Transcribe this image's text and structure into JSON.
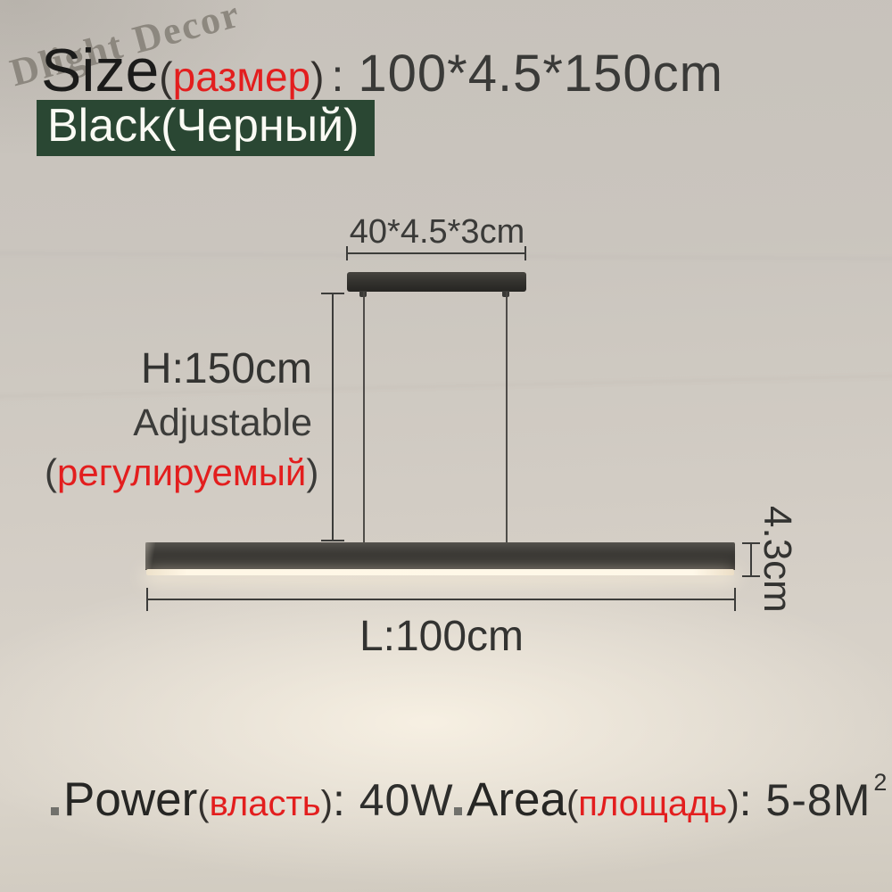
{
  "product": {
    "watermark": "Dlight Decor",
    "size_label": "Size",
    "size_paren_open": "(",
    "size_label_ru": "размер",
    "size_paren_close": ")",
    "size_colon": ":",
    "size_value": "100*4.5*150cm",
    "color_badge": "Black(Черный)"
  },
  "dimensions": {
    "canopy": "40*4.5*3cm",
    "height": "H:150cm",
    "adjustable": "Adjustable",
    "adjustable_ru_open": "(",
    "adjustable_ru": "регулируемый",
    "adjustable_ru_close": ")",
    "length": "L:100cm",
    "thickness": "4.3cm"
  },
  "specs": {
    "power_label": "Power",
    "power_paren_open": "(",
    "power_label_ru": "власть",
    "power_paren_close": ")",
    "power_value": ": 40W",
    "area_label": "Area",
    "area_paren_open": "(",
    "area_label_ru": "площадь",
    "area_paren_close": ")",
    "area_value": ": 5-8M",
    "area_sup": "2"
  },
  "colors": {
    "accent_red": "#e31e1e",
    "badge_green": "#2a4733",
    "text_dark": "#2b2b2b",
    "dimension_line": "#3c3c3a",
    "lamp_black": "#2a2926",
    "led_warm": "#fff6e4",
    "background_wall": "#cec9c1"
  }
}
